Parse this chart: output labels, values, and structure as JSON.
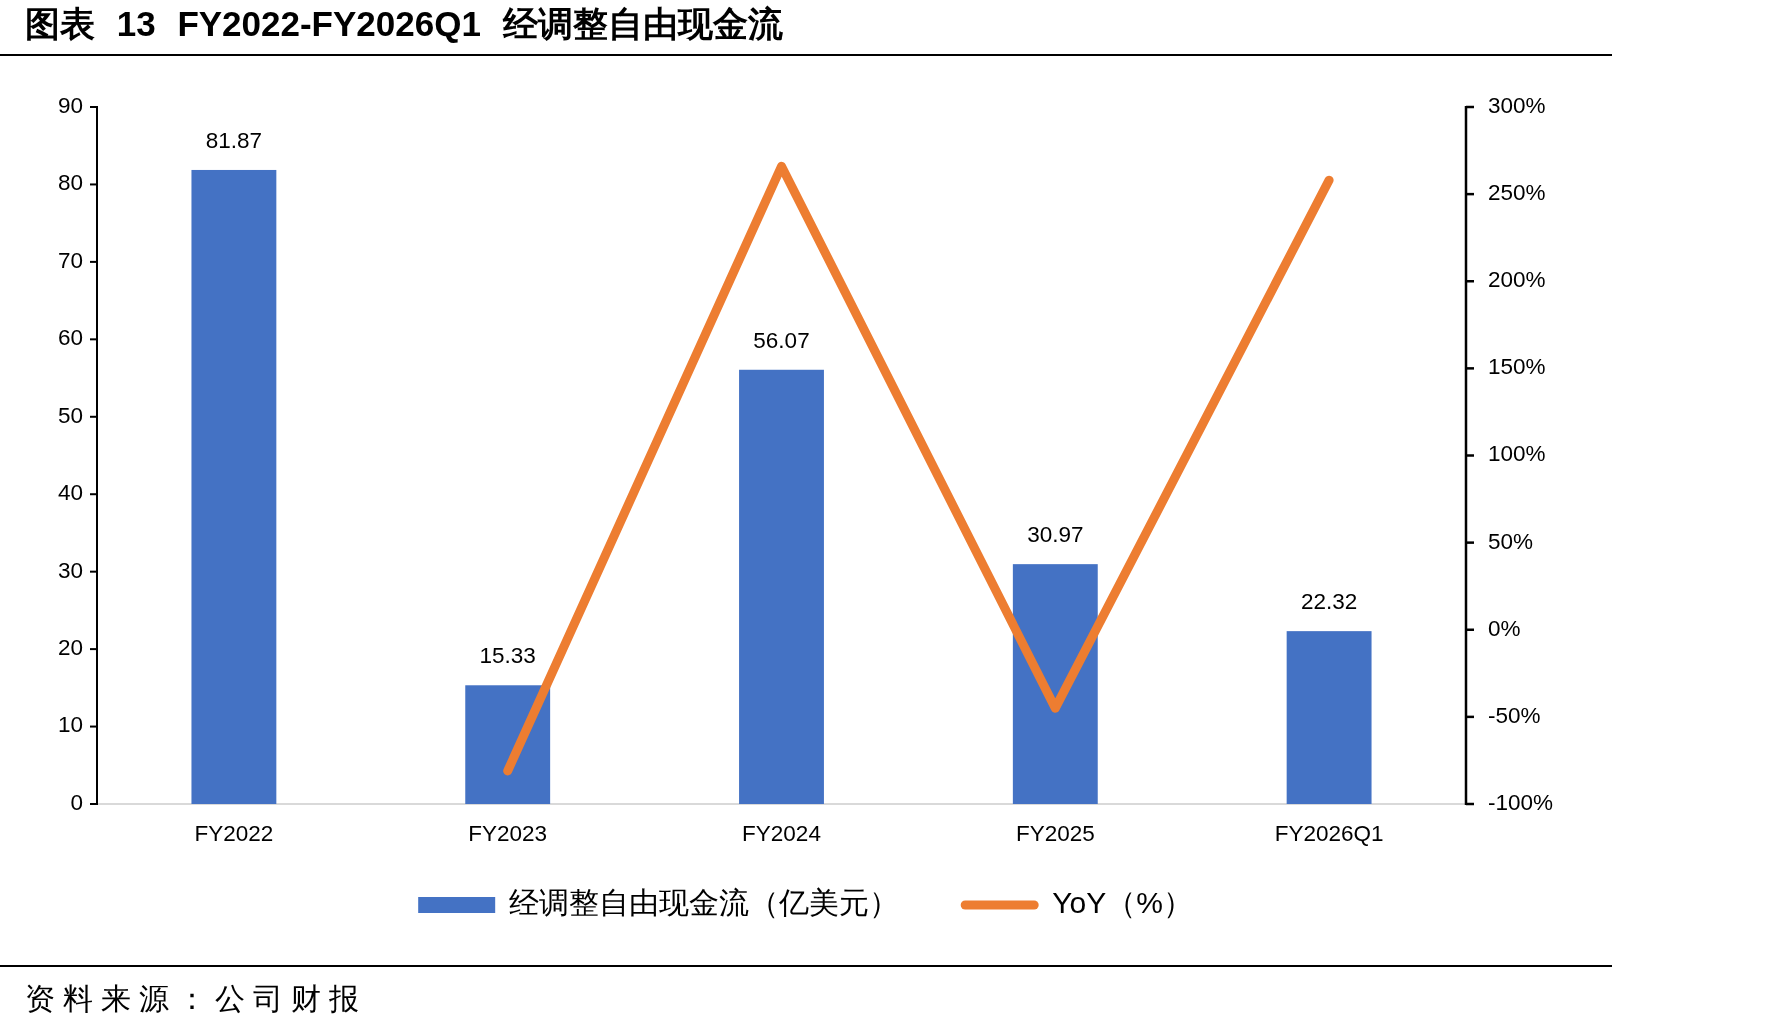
{
  "chart_data": {
    "type": "bar",
    "title": "图表 13 FY2022-FY2026Q1 经调整自由现金流",
    "categories": [
      "FY2022",
      "FY2023",
      "FY2024",
      "FY2025",
      "FY2026Q1"
    ],
    "series": [
      {
        "name": "经调整自由现金流（亿美元）",
        "color": "#4472c4",
        "values": [
          81.87,
          15.33,
          56.07,
          30.97,
          22.32
        ],
        "value_labels": [
          "81.87",
          "15.33",
          "56.07",
          "30.97",
          "22.32"
        ]
      },
      {
        "name": "YoY（%）",
        "type": "line",
        "axis": "y2",
        "color": "#ed7d31",
        "values": [
          null,
          -81,
          266,
          -45,
          258
        ]
      }
    ],
    "ylim": [
      0,
      90
    ],
    "yticks": [
      0,
      10,
      20,
      30,
      40,
      50,
      60,
      70,
      80,
      90
    ],
    "y2lim": [
      -100,
      300
    ],
    "y2ticks": [
      {
        "value": -100,
        "label": "-100%"
      },
      {
        "value": -50,
        "label": "-50%"
      },
      {
        "value": 0,
        "label": "0%"
      },
      {
        "value": 50,
        "label": "50%"
      },
      {
        "value": 100,
        "label": "100%"
      },
      {
        "value": 150,
        "label": "150%"
      },
      {
        "value": 200,
        "label": "200%"
      },
      {
        "value": 250,
        "label": "250%"
      },
      {
        "value": 300,
        "label": "300%"
      }
    ],
    "legend": "bottom",
    "annotations": [
      "资料来源：公司财报"
    ]
  }
}
